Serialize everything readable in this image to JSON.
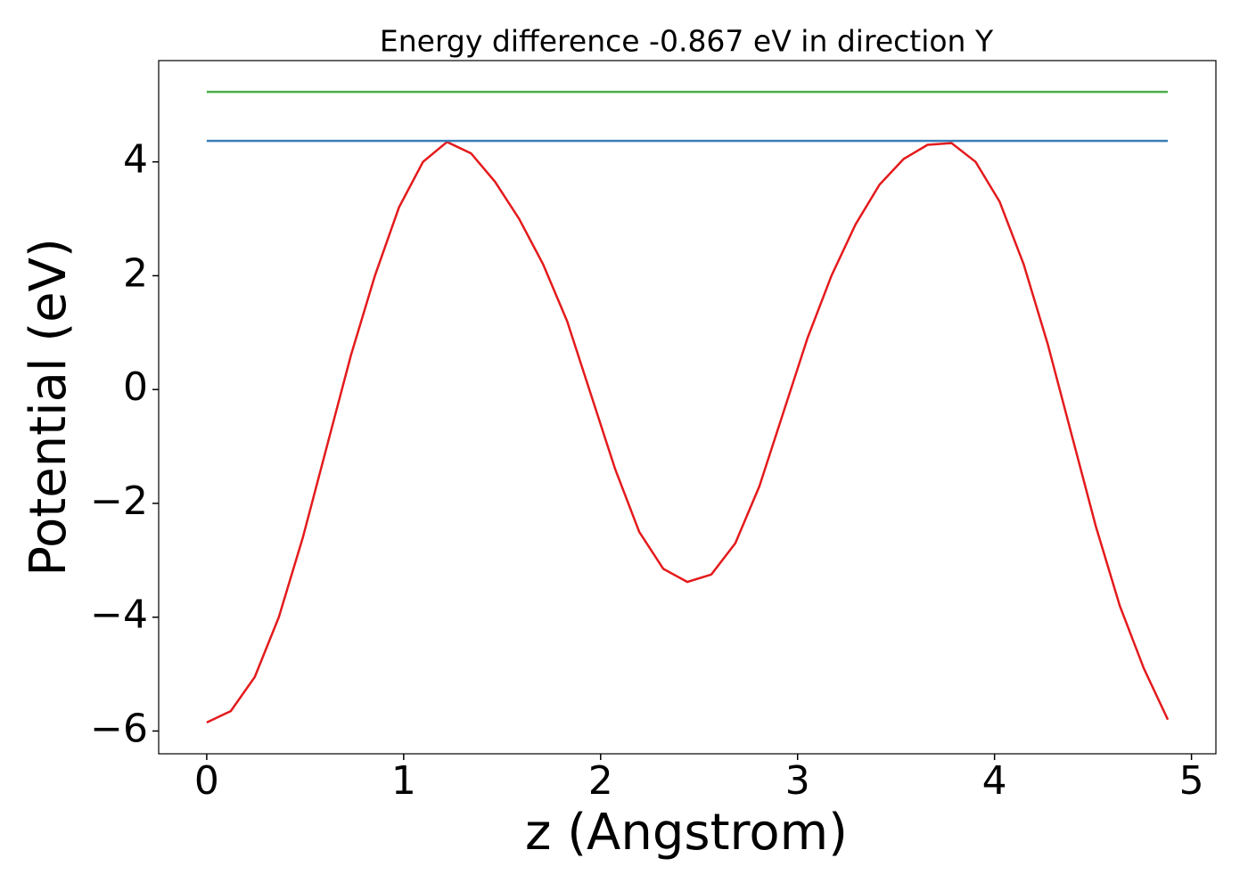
{
  "chart_data": {
    "type": "line",
    "title": "Energy difference -0.867 eV in direction Y",
    "xlabel": "z (Angstrom)",
    "ylabel": "Potential (eV)",
    "xlim": [
      -0.244,
      5.124
    ],
    "ylim": [
      -6.4,
      5.78
    ],
    "xticks": [
      0,
      1,
      2,
      3,
      4,
      5
    ],
    "yticks": [
      {
        "value": -6,
        "label": "−6"
      },
      {
        "value": -4,
        "label": "−4"
      },
      {
        "value": -2,
        "label": "−2"
      },
      0,
      2,
      4
    ],
    "grid": false,
    "series": [
      {
        "color": "#e41a1c",
        "x": [
          0,
          0.122,
          0.244,
          0.366,
          0.488,
          0.61,
          0.732,
          0.854,
          0.976,
          1.098,
          1.22,
          1.342,
          1.464,
          1.586,
          1.708,
          1.83,
          1.952,
          2.074,
          2.196,
          2.318,
          2.44,
          2.562,
          2.684,
          2.806,
          2.928,
          3.05,
          3.172,
          3.294,
          3.416,
          3.538,
          3.66,
          3.782,
          3.904,
          4.026,
          4.148,
          4.27,
          4.392,
          4.514,
          4.636,
          4.758,
          4.88
        ],
        "values": [
          -5.85,
          -5.65,
          -5.05,
          -4.0,
          -2.6,
          -1.0,
          0.6,
          2.0,
          3.2,
          4.0,
          4.35,
          4.15,
          3.65,
          3.0,
          2.2,
          1.2,
          -0.1,
          -1.4,
          -2.5,
          -3.15,
          -3.38,
          -3.25,
          -2.7,
          -1.7,
          -0.4,
          0.9,
          2.0,
          2.9,
          3.6,
          4.05,
          4.3,
          4.33,
          4.0,
          3.3,
          2.2,
          0.8,
          -0.8,
          -2.4,
          -3.8,
          -4.9,
          -5.8
        ]
      },
      {
        "color": "#377eb8",
        "x": [
          0,
          4.88
        ],
        "values": [
          4.37,
          4.37
        ]
      },
      {
        "color": "#4daf4a",
        "x": [
          0,
          4.88
        ],
        "values": [
          5.23,
          5.23
        ]
      }
    ]
  }
}
